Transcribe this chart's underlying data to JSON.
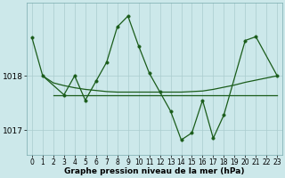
{
  "background_color": "#cce8ea",
  "grid_color": "#aaccce",
  "line_color": "#1a5c1a",
  "marker_color": "#1a5c1a",
  "ylim": [
    1016.55,
    1019.35
  ],
  "xlim": [
    -0.5,
    23.5
  ],
  "xlabel": "Graphe pression niveau de la mer (hPa)",
  "xticks": [
    0,
    1,
    2,
    3,
    4,
    5,
    6,
    7,
    8,
    9,
    10,
    11,
    12,
    13,
    14,
    15,
    16,
    17,
    18,
    19,
    20,
    21,
    22,
    23
  ],
  "yticks": [
    1017,
    1018
  ],
  "series": [
    {
      "x": [
        0,
        1,
        3,
        4,
        5,
        6,
        7,
        8,
        9,
        10,
        11,
        12,
        13,
        14,
        15,
        16,
        17,
        18,
        20,
        21,
        23
      ],
      "y": [
        1018.7,
        1018.0,
        1017.65,
        1018.0,
        1017.55,
        1017.9,
        1018.25,
        1018.9,
        1019.1,
        1018.55,
        1018.05,
        1017.7,
        1017.35,
        1016.82,
        1016.95,
        1017.55,
        1016.85,
        1017.28,
        1018.65,
        1018.72,
        1018.0
      ],
      "has_markers": true
    },
    {
      "x": [
        2,
        3,
        4,
        5,
        6,
        7,
        8,
        9,
        10,
        11,
        12,
        13,
        14,
        15,
        16,
        17,
        18,
        19,
        20,
        21,
        22,
        23
      ],
      "y": [
        1017.65,
        1017.65,
        1017.65,
        1017.65,
        1017.65,
        1017.65,
        1017.65,
        1017.65,
        1017.65,
        1017.65,
        1017.65,
        1017.65,
        1017.65,
        1017.65,
        1017.65,
        1017.65,
        1017.65,
        1017.65,
        1017.65,
        1017.65,
        1017.65,
        1017.65
      ],
      "has_markers": false
    },
    {
      "x": [
        1,
        2,
        3,
        4,
        5,
        6,
        7,
        8,
        9,
        10,
        11,
        12,
        13,
        14,
        15,
        16,
        17,
        18,
        19,
        20,
        21,
        22,
        23
      ],
      "y": [
        1018.0,
        1017.87,
        1017.82,
        1017.78,
        1017.75,
        1017.73,
        1017.71,
        1017.7,
        1017.7,
        1017.7,
        1017.7,
        1017.7,
        1017.7,
        1017.7,
        1017.71,
        1017.72,
        1017.75,
        1017.79,
        1017.83,
        1017.88,
        1017.92,
        1017.96,
        1018.0
      ],
      "has_markers": false
    }
  ],
  "marker_size": 2.5,
  "linewidth": 0.9,
  "xlabel_fontsize": 6.5,
  "ytick_fontsize": 6.5,
  "xtick_fontsize": 5.5
}
